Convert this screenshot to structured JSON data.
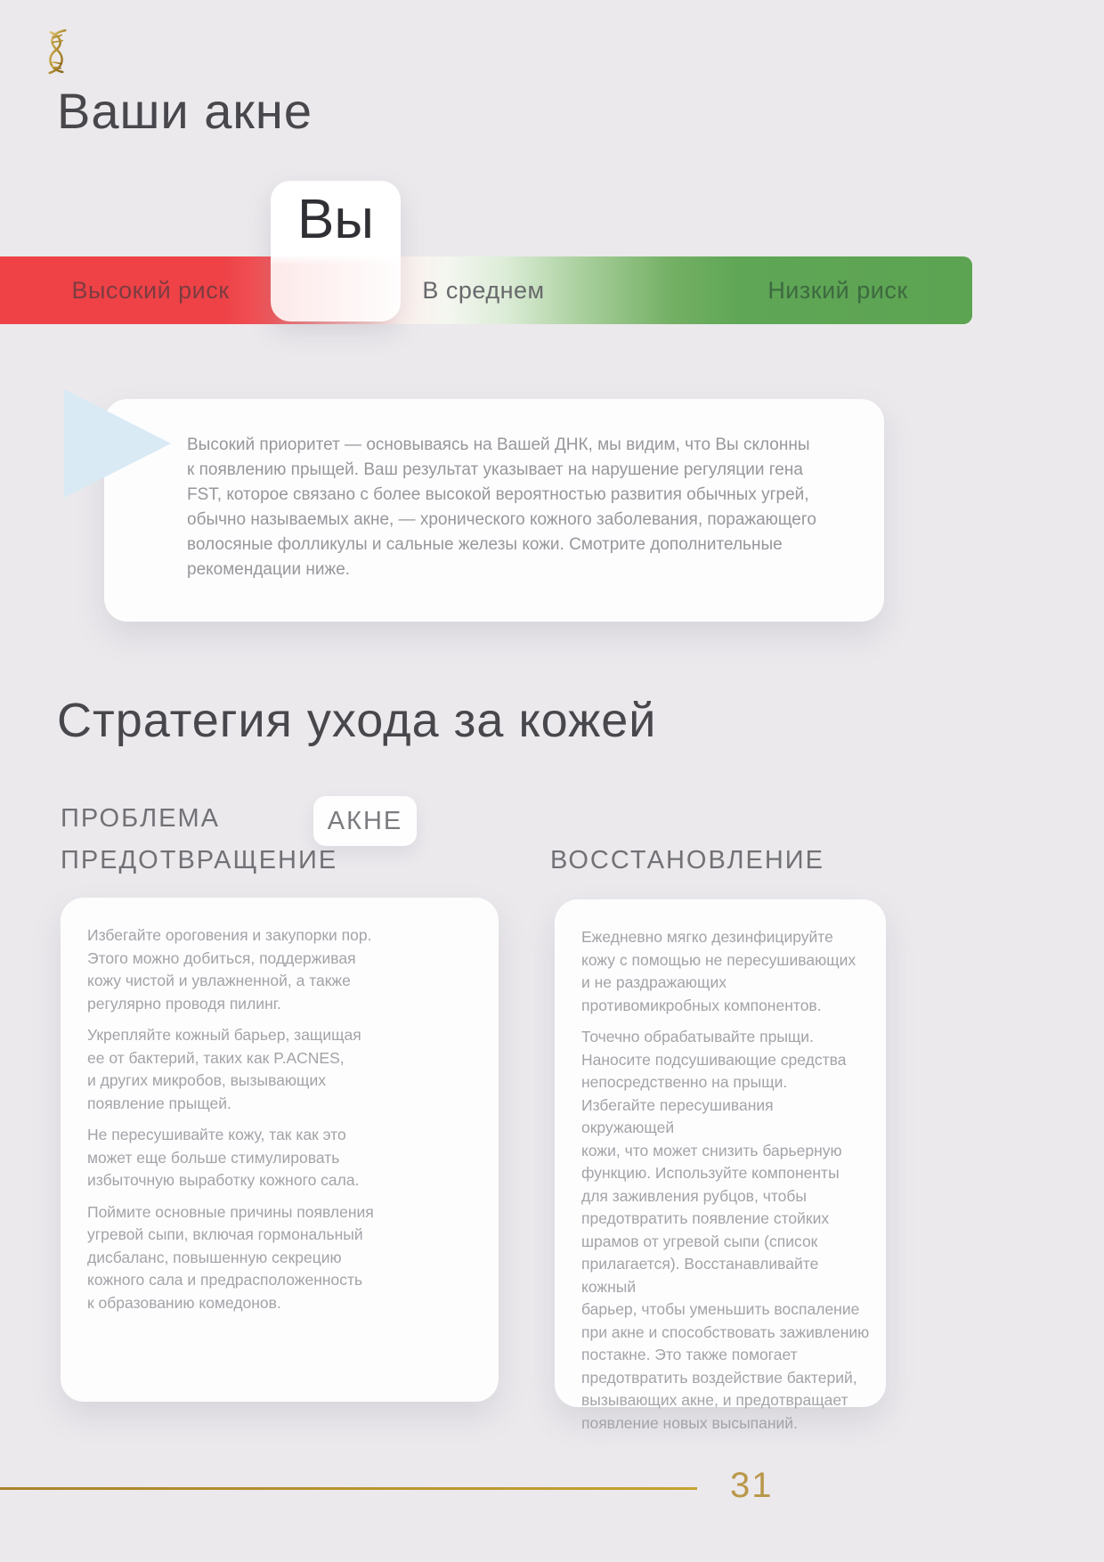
{
  "page": {
    "background_color": "#ebe9ec",
    "accent_gold": "#c7a231"
  },
  "header": {
    "title": "Ваши акне",
    "logo_icon": "gold-dna-helix"
  },
  "risk_scale": {
    "marker_label": "Вы",
    "high_label": "Высокий риск",
    "mid_label": "В среднем",
    "low_label": "Низкий риск",
    "high_color": "#ee4247",
    "low_color": "#5ca352"
  },
  "priority_note": {
    "text": "Высокий приоритет — основываясь на Вашей ДНК, мы видим, что Вы склонны\nк появлению прыщей. Ваш результат указывает на нарушение регуляции гена\nFST, которое связано с более высокой вероятностью развития обычных угрей,\nобычно называемых акне, — хронического кожного заболевания, поражающего\nволосяные фолликулы и сальные железы кожи. Смотрите дополнительные\nрекомендации ниже."
  },
  "strategy": {
    "title": "Стратегия ухода за кожей",
    "problem_label": "ПРОБЛЕМА",
    "problem_value": "АКНЕ",
    "prevention": {
      "heading": "ПРЕДОТВРАЩЕНИЕ",
      "paragraphs": [
        "Избегайте ороговения и закупорки пор.\nЭтого можно добиться, поддерживая\nкожу чистой и увлажненной, а также\nрегулярно проводя пилинг.",
        "Укрепляйте кожный барьер, защищая\nее от бактерий, таких как P.ACNES,\nи других микробов, вызывающих\nпоявление прыщей.",
        "Не пересушивайте кожу, так как это\nможет еще больше стимулировать\nизбыточную выработку кожного сала.",
        "Поймите основные причины появления\nугревой сыпи, включая гормональный\nдисбаланс, повышенную секрецию\nкожного сала и предрасположенность\nк образованию комедонов."
      ]
    },
    "restoration": {
      "heading": "ВОССТАНОВЛЕНИЕ",
      "paragraphs": [
        "Ежедневно мягко дезинфицируйте\nкожу с помощью не пересушивающих\nи не раздражающих\nпротивомикробных компонентов.",
        "Точечно обрабатывайте прыщи.\nНаносите подсушивающие средства\nнепосредственно на прыщи.\nИзбегайте пересушивания окружающей\nкожи, что может снизить барьерную\nфункцию. Используйте компоненты\nдля заживления рубцов, чтобы\nпредотвратить появление стойких\nшрамов от угревой сыпи (список\nприлагается). Восстанавливайте кожный\nбарьер, чтобы уменьшить воспаление\nпри акне и способствовать заживлению\nпостакне. Это также помогает\nпредотвратить воздействие бактерий,\nвызывающих акне, и предотвращает\nпоявление новых высыпаний."
      ]
    }
  },
  "footer": {
    "page_number": "31"
  }
}
